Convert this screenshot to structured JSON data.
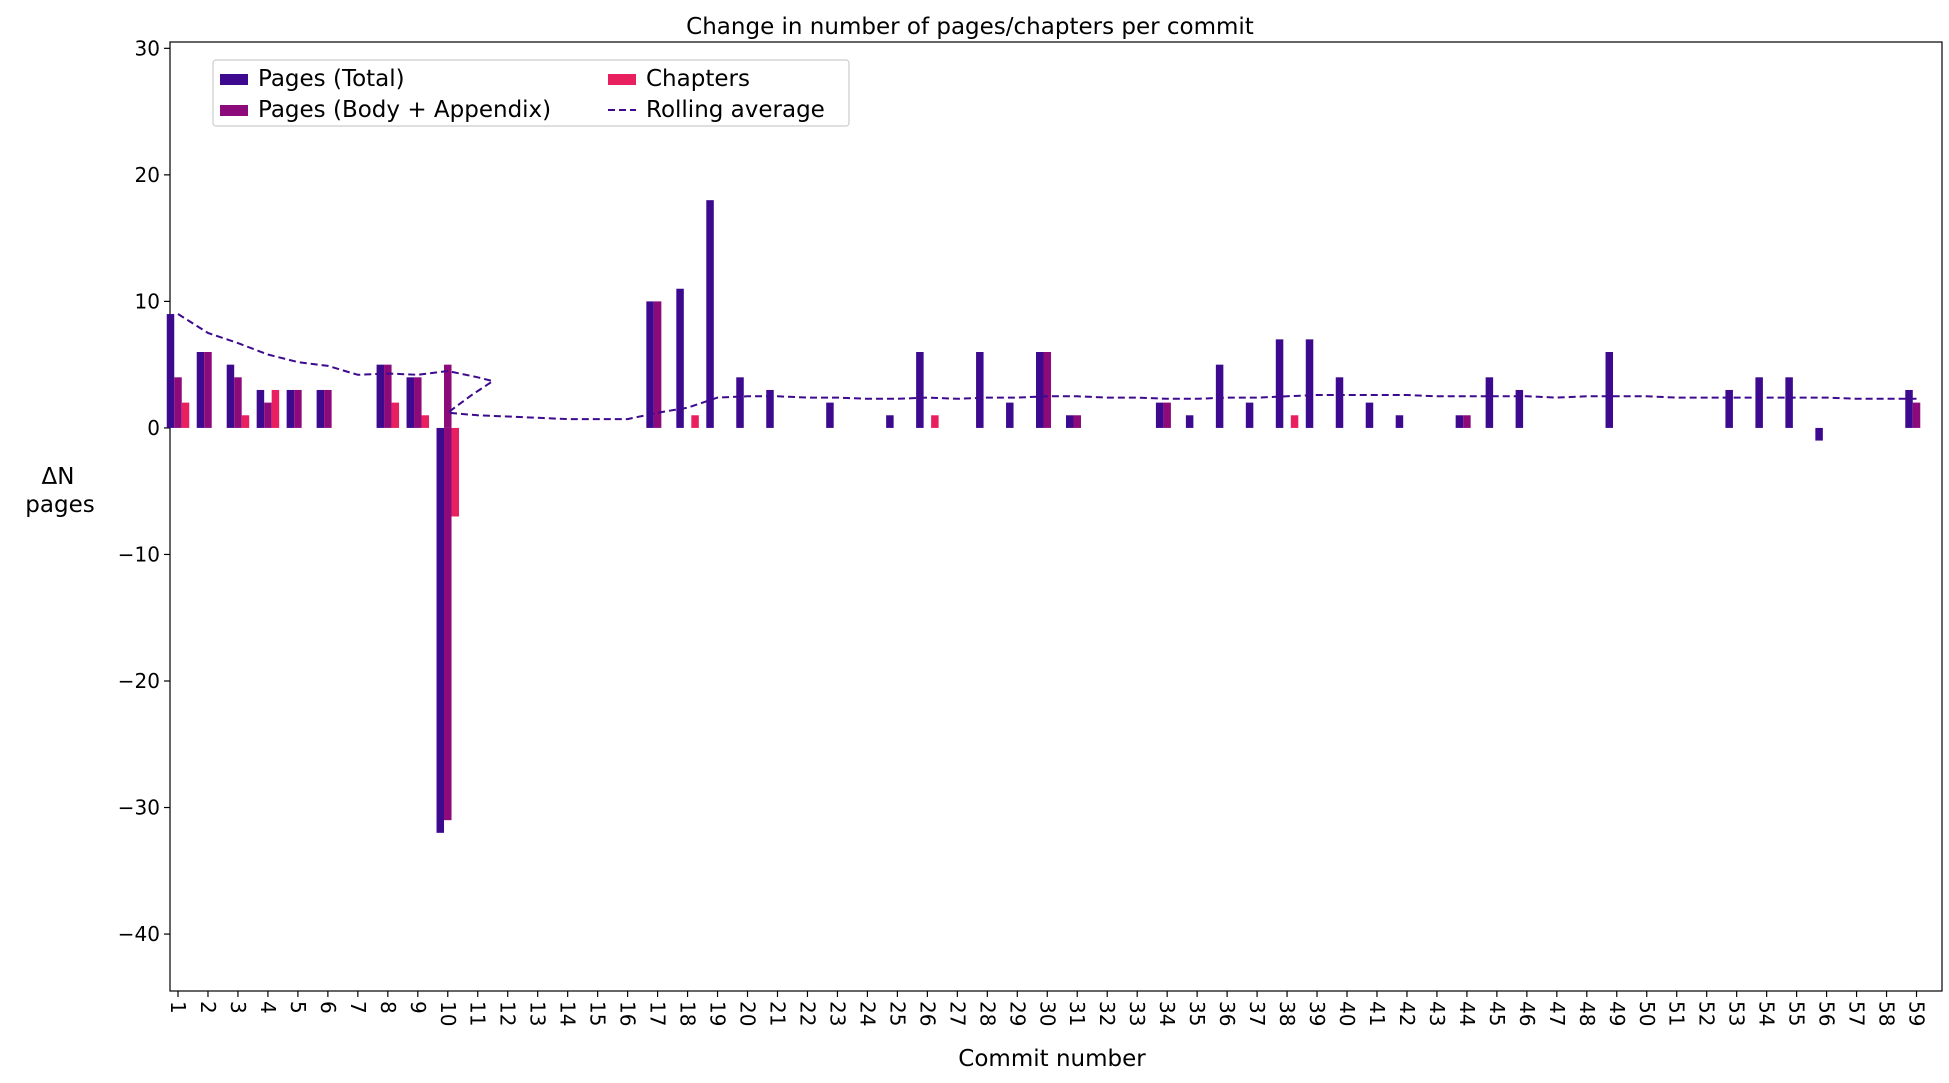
{
  "colors": {
    "total": "#3d0a8f",
    "body": "#8c0a7a",
    "chapters": "#e8205f",
    "rolling": "#3d0a8f"
  },
  "chart_data": {
    "type": "bar",
    "title": "Change in number of pages/chapters per commit",
    "xlabel": "Commit number",
    "ylabel_lines": [
      "ΔN",
      "pages"
    ],
    "ylim": [
      -44.5,
      30.5
    ],
    "yticks": [
      30,
      20,
      10,
      0,
      -10,
      -20,
      -30,
      -40
    ],
    "ytick_labels": [
      "30",
      "20",
      "10",
      "0",
      "−10",
      "−20",
      "−30",
      "−40"
    ],
    "grid": false,
    "legend_placement": "top-left",
    "categories": [
      "1",
      "2",
      "3",
      "4",
      "5",
      "6",
      "7",
      "8",
      "9",
      "10",
      "11",
      "12",
      "13",
      "14",
      "15",
      "16",
      "17",
      "18",
      "19",
      "20",
      "21",
      "22",
      "23",
      "24",
      "25",
      "26",
      "27",
      "28",
      "29",
      "30",
      "31",
      "32",
      "33",
      "34",
      "35",
      "36",
      "37",
      "38",
      "39",
      "40",
      "41",
      "42",
      "43",
      "44",
      "45",
      "46",
      "47",
      "48",
      "49",
      "50",
      "51",
      "52",
      "53",
      "54",
      "55",
      "56",
      "57",
      "58",
      "59"
    ],
    "series": [
      {
        "name": "Pages (Total)",
        "key": "total",
        "values": [
          9,
          6,
          5,
          3,
          3,
          3,
          0,
          5,
          4,
          -32,
          0,
          0,
          0,
          0,
          0,
          0,
          10,
          11,
          18,
          4,
          3,
          0,
          2,
          0,
          1,
          6,
          0,
          6,
          2,
          6,
          1,
          0,
          0,
          2,
          1,
          5,
          2,
          7,
          7,
          4,
          2,
          1,
          0,
          1,
          4,
          3,
          0,
          0,
          6,
          0,
          0,
          0,
          3,
          4,
          4,
          -1,
          0,
          0,
          3
        ]
      },
      {
        "name": "Pages (Body + Appendix)",
        "key": "body",
        "values": [
          4,
          6,
          4,
          2,
          3,
          3,
          0,
          5,
          4,
          5,
          0,
          0,
          0,
          0,
          0,
          0,
          10,
          0,
          0,
          0,
          0,
          0,
          0,
          0,
          0,
          0,
          0,
          0,
          0,
          6,
          1,
          0,
          0,
          2,
          0,
          0,
          0,
          0,
          0,
          0,
          0,
          0,
          0,
          1,
          0,
          0,
          0,
          0,
          0,
          0,
          0,
          0,
          0,
          0,
          0,
          0,
          0,
          0,
          2
        ]
      },
      {
        "name": "Chapters",
        "key": "chapters",
        "values": [
          2,
          0,
          1,
          3,
          0,
          0,
          0,
          2,
          1,
          -7,
          0,
          0,
          0,
          0,
          0,
          0,
          0,
          1,
          0,
          0,
          0,
          0,
          0,
          0,
          0,
          1,
          0,
          0,
          0,
          0,
          0,
          0,
          0,
          0,
          0,
          0,
          0,
          1,
          0,
          0,
          0,
          0,
          0,
          0,
          0,
          0,
          0,
          0,
          0,
          0,
          0,
          0,
          0,
          0,
          0,
          0,
          0,
          0,
          0
        ]
      }
    ],
    "body_negative_overrides": {
      "10": -31
    },
    "rolling_average": {
      "name": "Rolling average",
      "points": [
        [
          1,
          9.0
        ],
        [
          2,
          7.5
        ],
        [
          3,
          6.7
        ],
        [
          4,
          5.8
        ],
        [
          5,
          5.2
        ],
        [
          6,
          4.9
        ],
        [
          7,
          4.2
        ],
        [
          8,
          4.3
        ],
        [
          9,
          4.2
        ],
        [
          10,
          4.5
        ],
        [
          11,
          4.0
        ],
        [
          11.5,
          3.7
        ],
        [
          10.8,
          2.6
        ],
        [
          10.0,
          1.2
        ],
        [
          11,
          1.0
        ],
        [
          12,
          0.9
        ],
        [
          13,
          0.8
        ],
        [
          14,
          0.7
        ],
        [
          15,
          0.7
        ],
        [
          16,
          0.7
        ],
        [
          17,
          1.2
        ],
        [
          18,
          1.6
        ],
        [
          19,
          2.4
        ],
        [
          20,
          2.5
        ],
        [
          21,
          2.5
        ],
        [
          22,
          2.4
        ],
        [
          23,
          2.4
        ],
        [
          24,
          2.3
        ],
        [
          25,
          2.3
        ],
        [
          26,
          2.4
        ],
        [
          27,
          2.3
        ],
        [
          28,
          2.4
        ],
        [
          29,
          2.4
        ],
        [
          30,
          2.5
        ],
        [
          31,
          2.5
        ],
        [
          32,
          2.4
        ],
        [
          33,
          2.4
        ],
        [
          34,
          2.3
        ],
        [
          35,
          2.3
        ],
        [
          36,
          2.4
        ],
        [
          37,
          2.4
        ],
        [
          38,
          2.5
        ],
        [
          39,
          2.6
        ],
        [
          40,
          2.6
        ],
        [
          41,
          2.6
        ],
        [
          42,
          2.6
        ],
        [
          43,
          2.5
        ],
        [
          44,
          2.5
        ],
        [
          45,
          2.5
        ],
        [
          46,
          2.5
        ],
        [
          47,
          2.4
        ],
        [
          48,
          2.5
        ],
        [
          49,
          2.5
        ],
        [
          50,
          2.5
        ],
        [
          51,
          2.4
        ],
        [
          52,
          2.4
        ],
        [
          53,
          2.4
        ],
        [
          54,
          2.4
        ],
        [
          55,
          2.4
        ],
        [
          56,
          2.4
        ],
        [
          57,
          2.3
        ],
        [
          58,
          2.3
        ],
        [
          59,
          2.3
        ]
      ]
    }
  }
}
